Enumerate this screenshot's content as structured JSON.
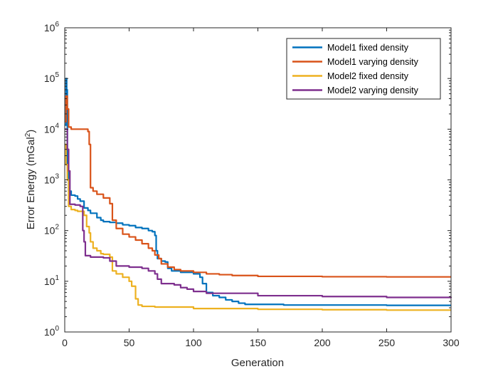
{
  "chart_data": {
    "type": "line",
    "xlabel": "Generation",
    "ylabel_main": "Error Energy (mGal",
    "ylabel_sup": "2",
    "ylabel_tail": ")",
    "xlim": [
      0,
      300
    ],
    "ylim": [
      1,
      1000000
    ],
    "yscale": "log",
    "grid": false,
    "legend_position": "top-right",
    "x_ticks": [
      0,
      50,
      100,
      150,
      200,
      250,
      300
    ],
    "x_tick_labels": [
      "0",
      "50",
      "100",
      "150",
      "200",
      "250",
      "300"
    ],
    "y_ticks": [
      {
        "value": 1,
        "base": "10",
        "exp": "0"
      },
      {
        "value": 10,
        "base": "10",
        "exp": "1"
      },
      {
        "value": 100,
        "base": "10",
        "exp": "2"
      },
      {
        "value": 1000,
        "base": "10",
        "exp": "3"
      },
      {
        "value": 10000,
        "base": "10",
        "exp": "4"
      },
      {
        "value": 100000,
        "base": "10",
        "exp": "5"
      },
      {
        "value": 1000000,
        "base": "10",
        "exp": "6"
      }
    ],
    "series": [
      {
        "name": "Model1 fixed density",
        "color": "#0072BD",
        "points": [
          [
            0,
            12000
          ],
          [
            1,
            100000
          ],
          [
            1.5,
            60000
          ],
          [
            2,
            2000
          ],
          [
            3,
            600
          ],
          [
            5,
            500
          ],
          [
            8,
            480
          ],
          [
            10,
            420
          ],
          [
            12,
            380
          ],
          [
            15,
            280
          ],
          [
            18,
            250
          ],
          [
            20,
            220
          ],
          [
            25,
            180
          ],
          [
            28,
            160
          ],
          [
            30,
            150
          ],
          [
            35,
            145
          ],
          [
            40,
            140
          ],
          [
            45,
            130
          ],
          [
            50,
            125
          ],
          [
            55,
            115
          ],
          [
            60,
            110
          ],
          [
            65,
            100
          ],
          [
            68,
            95
          ],
          [
            70,
            80
          ],
          [
            71,
            40
          ],
          [
            72,
            28
          ],
          [
            75,
            25
          ],
          [
            78,
            24
          ],
          [
            80,
            18
          ],
          [
            83,
            16
          ],
          [
            90,
            15
          ],
          [
            100,
            14
          ],
          [
            105,
            12
          ],
          [
            107,
            9
          ],
          [
            110,
            6
          ],
          [
            115,
            5.2
          ],
          [
            120,
            4.8
          ],
          [
            125,
            4.3
          ],
          [
            130,
            4.0
          ],
          [
            135,
            3.7
          ],
          [
            140,
            3.5
          ],
          [
            150,
            3.5
          ],
          [
            170,
            3.4
          ],
          [
            200,
            3.4
          ],
          [
            250,
            3.35
          ],
          [
            300,
            3.35
          ]
        ]
      },
      {
        "name": "Model1 varying density",
        "color": "#D95319",
        "points": [
          [
            0,
            14000
          ],
          [
            1,
            45000
          ],
          [
            2,
            25000
          ],
          [
            3,
            11000
          ],
          [
            5,
            10000
          ],
          [
            15,
            10000
          ],
          [
            18,
            9000
          ],
          [
            19,
            5000
          ],
          [
            20,
            700
          ],
          [
            22,
            600
          ],
          [
            25,
            520
          ],
          [
            30,
            440
          ],
          [
            35,
            340
          ],
          [
            37,
            160
          ],
          [
            40,
            110
          ],
          [
            45,
            85
          ],
          [
            50,
            75
          ],
          [
            55,
            65
          ],
          [
            60,
            55
          ],
          [
            65,
            45
          ],
          [
            68,
            40
          ],
          [
            70,
            33
          ],
          [
            73,
            28
          ],
          [
            75,
            22
          ],
          [
            80,
            19
          ],
          [
            85,
            17
          ],
          [
            90,
            16
          ],
          [
            100,
            15
          ],
          [
            110,
            14
          ],
          [
            120,
            13.5
          ],
          [
            130,
            13
          ],
          [
            150,
            12.5
          ],
          [
            200,
            12.3
          ],
          [
            250,
            12.2
          ],
          [
            300,
            12.2
          ]
        ]
      },
      {
        "name": "Model2 fixed density",
        "color": "#EDB120",
        "points": [
          [
            0,
            5000
          ],
          [
            1,
            2000
          ],
          [
            2,
            1000
          ],
          [
            3,
            300
          ],
          [
            5,
            260
          ],
          [
            8,
            250
          ],
          [
            10,
            240
          ],
          [
            15,
            200
          ],
          [
            17,
            120
          ],
          [
            19,
            90
          ],
          [
            20,
            60
          ],
          [
            22,
            45
          ],
          [
            25,
            40
          ],
          [
            28,
            35
          ],
          [
            30,
            34
          ],
          [
            35,
            30
          ],
          [
            37,
            16
          ],
          [
            40,
            14
          ],
          [
            45,
            12
          ],
          [
            50,
            10
          ],
          [
            52,
            8
          ],
          [
            55,
            4.5
          ],
          [
            57,
            3.4
          ],
          [
            60,
            3.2
          ],
          [
            70,
            3.1
          ],
          [
            100,
            2.9
          ],
          [
            150,
            2.8
          ],
          [
            200,
            2.75
          ],
          [
            250,
            2.7
          ],
          [
            300,
            2.7
          ]
        ]
      },
      {
        "name": "Model2 varying density",
        "color": "#7E2F8E",
        "points": [
          [
            0,
            10000
          ],
          [
            2,
            4000
          ],
          [
            3,
            1500
          ],
          [
            4,
            330
          ],
          [
            8,
            320
          ],
          [
            12,
            300
          ],
          [
            14,
            100
          ],
          [
            15,
            60
          ],
          [
            16,
            32
          ],
          [
            20,
            30
          ],
          [
            30,
            29
          ],
          [
            35,
            25
          ],
          [
            40,
            20
          ],
          [
            50,
            19
          ],
          [
            60,
            18
          ],
          [
            65,
            16
          ],
          [
            70,
            14
          ],
          [
            72,
            11
          ],
          [
            75,
            9
          ],
          [
            85,
            8.5
          ],
          [
            90,
            7.5
          ],
          [
            95,
            7
          ],
          [
            100,
            6.3
          ],
          [
            110,
            5.8
          ],
          [
            150,
            5.2
          ],
          [
            200,
            5
          ],
          [
            250,
            4.8
          ],
          [
            300,
            4.7
          ]
        ]
      }
    ]
  }
}
